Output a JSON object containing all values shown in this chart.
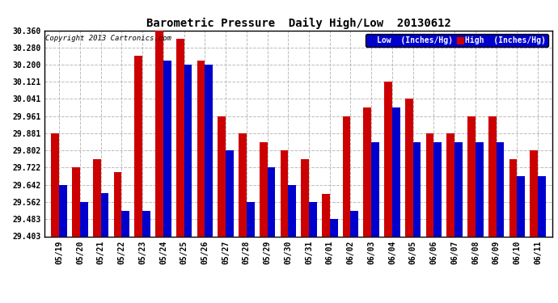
{
  "title": "Barometric Pressure  Daily High/Low  20130612",
  "copyright": "Copyright 2013 Cartronics.com",
  "legend_low": "Low  (Inches/Hg)",
  "legend_high": "High  (Inches/Hg)",
  "low_color": "#0000cc",
  "high_color": "#cc0000",
  "background_color": "#ffffff",
  "ytick_labels": [
    "29.403",
    "29.483",
    "29.562",
    "29.642",
    "29.722",
    "29.802",
    "29.881",
    "29.961",
    "30.041",
    "30.121",
    "30.200",
    "30.280",
    "30.360"
  ],
  "ytick_values": [
    29.403,
    29.483,
    29.562,
    29.642,
    29.722,
    29.802,
    29.881,
    29.961,
    30.041,
    30.121,
    30.2,
    30.28,
    30.36
  ],
  "ylim": [
    29.403,
    30.36
  ],
  "dates": [
    "05/19",
    "05/20",
    "05/21",
    "05/22",
    "05/23",
    "05/24",
    "05/25",
    "05/26",
    "05/27",
    "05/28",
    "05/29",
    "05/30",
    "05/31",
    "06/01",
    "06/02",
    "06/03",
    "06/04",
    "06/05",
    "06/06",
    "06/07",
    "06/08",
    "06/09",
    "06/10",
    "06/11"
  ],
  "high_values": [
    29.881,
    29.722,
    29.762,
    29.7,
    30.24,
    30.36,
    30.32,
    30.22,
    29.961,
    29.881,
    29.841,
    29.802,
    29.762,
    29.601,
    29.961,
    30.001,
    30.121,
    30.041,
    29.881,
    29.881,
    29.961,
    29.961,
    29.762,
    29.802
  ],
  "low_values": [
    29.642,
    29.562,
    29.602,
    29.522,
    29.522,
    30.22,
    30.2,
    30.2,
    29.802,
    29.562,
    29.722,
    29.642,
    29.562,
    29.483,
    29.522,
    29.842,
    30.001,
    29.842,
    29.842,
    29.842,
    29.842,
    29.842,
    29.682,
    29.682
  ],
  "bar_width": 0.38,
  "title_fontsize": 10,
  "tick_fontsize": 7,
  "figwidth": 6.9,
  "figheight": 3.75,
  "dpi": 100
}
